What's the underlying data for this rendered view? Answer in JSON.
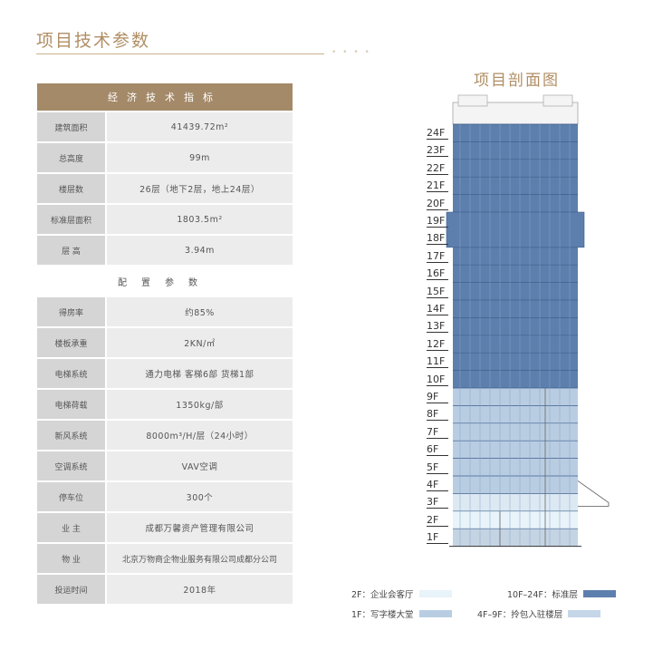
{
  "page_title": "项目技术参数",
  "table": {
    "header": "经济技术指标",
    "rows_a": [
      {
        "k": "建筑面积",
        "v": "41439.72m²"
      },
      {
        "k": "总高度",
        "v": "99m"
      },
      {
        "k": "楼层数",
        "v": "26层（地下2层，地上24层）"
      },
      {
        "k": "标准层面积",
        "v": "1803.5m²"
      },
      {
        "k": "层 高",
        "v": "3.94m"
      }
    ],
    "subheader": "配置参数",
    "rows_b": [
      {
        "k": "得房率",
        "v": "约85%"
      },
      {
        "k": "楼板承重",
        "v": "2KN/㎡"
      },
      {
        "k": "电梯系统",
        "v": "通力电梯 客梯6部 货梯1部"
      },
      {
        "k": "电梯荷载",
        "v": "1350kg/部"
      },
      {
        "k": "新风系统",
        "v": "8000m³/H/层（24小时）"
      },
      {
        "k": "空调系统",
        "v": "VAV空调"
      },
      {
        "k": "停车位",
        "v": "300个"
      },
      {
        "k": "业 主",
        "v": "成都万馨资产管理有限公司"
      },
      {
        "k": "物 业",
        "v": "北京万物商企物业服务有限公司成都分公司"
      },
      {
        "k": "投运时间",
        "v": "2018年"
      }
    ]
  },
  "diagram": {
    "title": "项目剖面图",
    "floors": [
      "24F",
      "23F",
      "22F",
      "21F",
      "20F",
      "19F",
      "18F",
      "17F",
      "16F",
      "15F",
      "14F",
      "13F",
      "12F",
      "11F",
      "10F",
      "9F",
      "8F",
      "7F",
      "6F",
      "5F",
      "4F",
      "3F",
      "2F",
      "1F"
    ],
    "colors": {
      "standard": "#5d7fad",
      "podium": "#b9cde2",
      "lobby": "#dce9f3",
      "entry": "#e8f3fa",
      "roof": "#f4f4f4"
    }
  },
  "legend": [
    {
      "label": "2F：企业会客厅",
      "color": "#e8f3fa"
    },
    {
      "label": "10F–24F：标准层",
      "color": "#5d7fad"
    },
    {
      "label": "1F：写字楼大堂",
      "color": "#b9cde2"
    },
    {
      "label": "4F–9F：拎包入驻楼层",
      "color": "#c4d6e8"
    }
  ]
}
